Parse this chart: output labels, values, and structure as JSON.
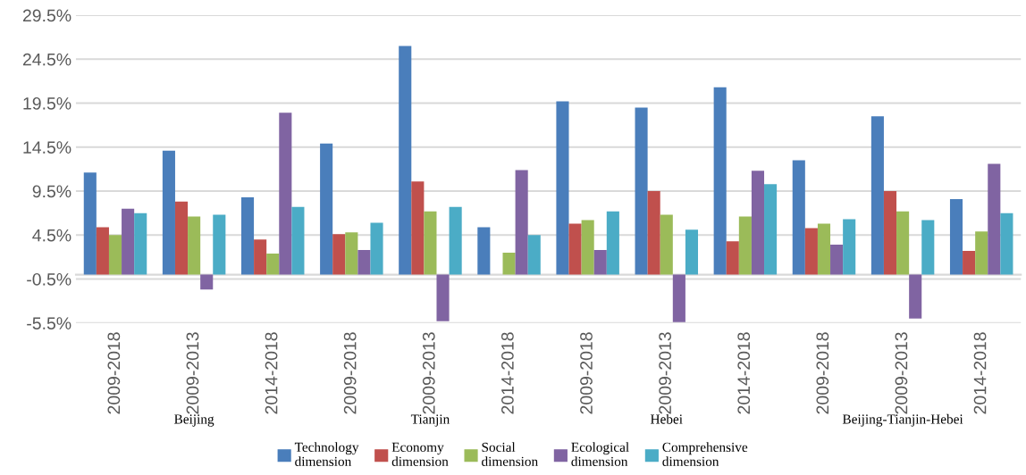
{
  "chart_data": {
    "type": "bar",
    "categories": [
      "2009-2018",
      "2009-2013",
      "2014-2018",
      "2009-2018",
      "2009-2013",
      "2014-2018",
      "2009-2018",
      "2009-2013",
      "2014-2018",
      "2009-2018",
      "2009-2013",
      "2014-2018"
    ],
    "series": [
      {
        "name": "Technology dimension",
        "color": "#4a7ebb",
        "values": [
          11.6,
          14.1,
          8.8,
          14.9,
          26.0,
          5.4,
          19.7,
          19.0,
          21.3,
          13.0,
          18.0,
          8.6
        ]
      },
      {
        "name": "Economy dimension",
        "color": "#c0504d",
        "values": [
          5.4,
          8.3,
          4.0,
          4.6,
          10.6,
          null,
          5.8,
          9.5,
          3.8,
          5.3,
          9.5,
          2.7
        ]
      },
      {
        "name": "Social dimension",
        "color": "#9bbb59",
        "values": [
          4.5,
          6.6,
          2.4,
          4.8,
          7.2,
          2.5,
          6.2,
          6.8,
          6.6,
          5.8,
          7.2,
          4.9
        ]
      },
      {
        "name": "Ecological dimension",
        "color": "#8064a2",
        "values": [
          7.5,
          -1.7,
          18.4,
          2.8,
          -5.3,
          11.9,
          2.8,
          -5.4,
          11.8,
          3.4,
          -5.0,
          12.6
        ]
      },
      {
        "name": "Comprehensive dimension",
        "color": "#4bacc6",
        "values": [
          7.0,
          6.8,
          7.7,
          5.9,
          7.7,
          4.5,
          7.2,
          5.1,
          10.3,
          6.3,
          6.2,
          7.0
        ]
      }
    ],
    "annotations": [
      "Beijing",
      "Tianjin",
      "Hebei",
      "Beijing-Tianjin-Hebei"
    ],
    "ylim": [
      -5.5,
      29.5
    ],
    "yticks": [
      {
        "value": -5.5,
        "label": "-5.5%"
      },
      {
        "value": -0.5,
        "label": "-0.5%"
      },
      {
        "value": 4.5,
        "label": "4.5%"
      },
      {
        "value": 9.5,
        "label": "9.5%"
      },
      {
        "value": 14.5,
        "label": "14.5%"
      },
      {
        "value": 19.5,
        "label": "19.5%"
      },
      {
        "value": 24.5,
        "label": "24.5%"
      },
      {
        "value": 29.5,
        "label": "29.5%"
      }
    ],
    "grid": "y",
    "legend": "bottom"
  }
}
